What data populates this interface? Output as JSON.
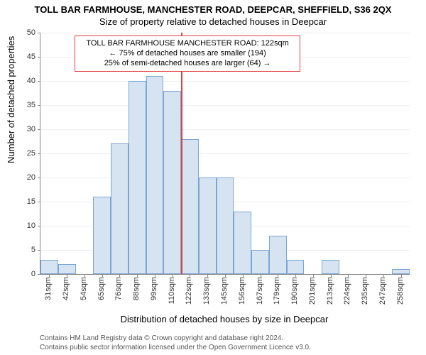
{
  "title": "TOLL BAR FARMHOUSE, MANCHESTER ROAD, DEEPCAR, SHEFFIELD, S36 2QX",
  "subtitle": "Size of property relative to detached houses in Deepcar",
  "chart": {
    "type": "histogram",
    "ylabel": "Number of detached properties",
    "xlabel": "Distribution of detached houses by size in Deepcar",
    "ylim": [
      0,
      50
    ],
    "ytick_step": 5,
    "background_color": "#ffffff",
    "grid_color": "#eeeeee",
    "axis_color": "#888888",
    "bar_fill": "#d6e4f2",
    "bar_border": "#7aa6d6",
    "bar_width_ratio": 1.0,
    "categories": [
      "31sqm",
      "42sqm",
      "54sqm",
      "65sqm",
      "76sqm",
      "88sqm",
      "99sqm",
      "110sqm",
      "122sqm",
      "133sqm",
      "145sqm",
      "156sqm",
      "167sqm",
      "179sqm",
      "190sqm",
      "201sqm",
      "213sqm",
      "224sqm",
      "235sqm",
      "247sqm",
      "258sqm"
    ],
    "values": [
      3,
      2,
      0,
      16,
      27,
      40,
      41,
      38,
      28,
      20,
      20,
      13,
      5,
      8,
      3,
      0,
      3,
      0,
      0,
      0,
      1
    ],
    "marker": {
      "index_after": 8,
      "color": "#e04040",
      "annotation_lines": [
        "TOLL BAR FARMHOUSE MANCHESTER ROAD: 122sqm",
        "← 75% of detached houses are smaller (194)",
        "25% of semi-detached houses are larger (64) →"
      ],
      "annotation_fontsize": 11
    },
    "label_fontsize": 13,
    "tick_fontsize": 11
  },
  "attribution": [
    "Contains HM Land Registry data © Crown copyright and database right 2024.",
    "Contains public sector information licensed under the Open Government Licence v3.0."
  ]
}
